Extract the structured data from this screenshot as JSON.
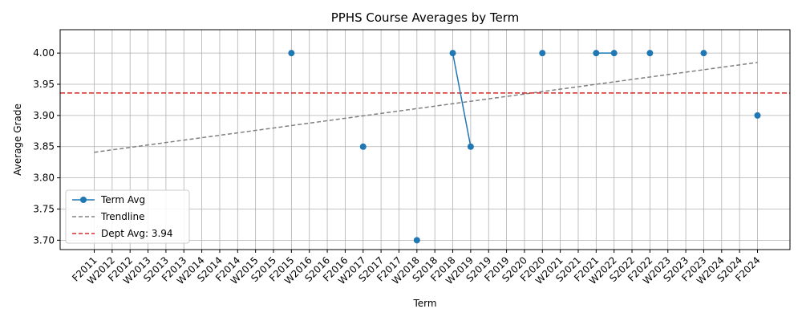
{
  "chart_data": {
    "type": "line",
    "title": "PPHS Course Averages by Term",
    "xlabel": "Term",
    "ylabel": "Average Grade",
    "ylim": [
      3.685,
      4.0375
    ],
    "yticks": [
      3.7,
      3.75,
      3.8,
      3.85,
      3.9,
      3.95,
      4.0
    ],
    "ytick_labels": [
      "3.70",
      "3.75",
      "3.80",
      "3.85",
      "3.90",
      "3.95",
      "4.00"
    ],
    "grid": true,
    "legend_position": "lower-left",
    "categories": [
      "F2011",
      "W2012",
      "F2012",
      "W2013",
      "S2013",
      "F2013",
      "W2014",
      "S2014",
      "F2014",
      "W2015",
      "S2015",
      "F2015",
      "W2016",
      "S2016",
      "F2016",
      "W2017",
      "S2017",
      "F2017",
      "W2018",
      "S2018",
      "F2018",
      "W2019",
      "S2019",
      "F2019",
      "S2020",
      "F2020",
      "W2021",
      "S2021",
      "F2021",
      "W2022",
      "S2022",
      "F2022",
      "W2023",
      "S2023",
      "F2023",
      "W2024",
      "S2024",
      "F2024"
    ],
    "series": [
      {
        "name": "Term Avg",
        "color": "#1f77b4",
        "marker": "circle",
        "values": [
          null,
          null,
          null,
          null,
          null,
          null,
          null,
          null,
          null,
          null,
          null,
          4.0,
          null,
          null,
          null,
          3.85,
          null,
          null,
          3.7,
          null,
          4.0,
          3.85,
          null,
          null,
          null,
          4.0,
          null,
          null,
          4.0,
          4.0,
          null,
          4.0,
          null,
          null,
          4.0,
          null,
          null,
          3.9
        ]
      },
      {
        "name": "Trendline",
        "color": "#808080",
        "style": "dashed",
        "x_range": [
          "F2011",
          "F2024"
        ],
        "start": 3.841,
        "end": 3.985
      },
      {
        "name": "Dept Avg: 3.94",
        "color": "#d62728",
        "style": "dashed",
        "value": 3.936
      }
    ]
  }
}
